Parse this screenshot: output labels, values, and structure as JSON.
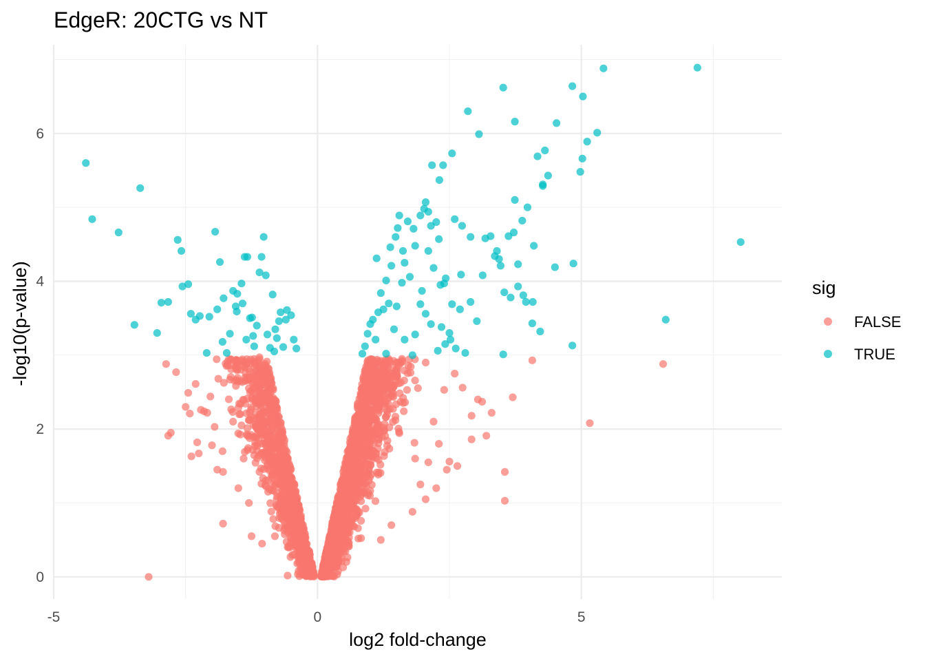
{
  "chart_data": {
    "type": "scatter",
    "title": "EdgeR: 20CTG vs NT",
    "xlabel": "log2 fold-change",
    "ylabel": "-log10(p-value)",
    "xlim": [
      -5,
      8.8
    ],
    "ylim": [
      -0.3,
      7.2
    ],
    "x_ticks": [
      -5,
      0,
      5
    ],
    "x_tick_labels": [
      "-5",
      "0",
      "5"
    ],
    "y_ticks": [
      0,
      2,
      4,
      6
    ],
    "y_tick_labels": [
      "0",
      "2",
      "4",
      "6"
    ],
    "grid": true,
    "legend": {
      "title": "sig",
      "position": "right",
      "entries": [
        {
          "label": "FALSE",
          "color": "#F8766D"
        },
        {
          "label": "TRUE",
          "color": "#00BFC4"
        }
      ]
    },
    "point_opacity": 0.7,
    "series": [
      {
        "name": "FALSE",
        "color": "#F8766D",
        "points": [
          [
            -2.87,
            2.88
          ],
          [
            -2.83,
            1.91
          ],
          [
            -2.78,
            1.95
          ],
          [
            -2.68,
            2.77
          ],
          [
            -2.45,
            2.49
          ],
          [
            -2.42,
            2.21
          ],
          [
            -2.39,
            1.63
          ],
          [
            -2.31,
            2.61
          ],
          [
            -2.28,
            1.82
          ],
          [
            -2.25,
            1.67
          ],
          [
            -2.21,
            2.26
          ],
          [
            -2.15,
            2.24
          ],
          [
            -2.09,
            2.22
          ],
          [
            -2.03,
            2.44
          ],
          [
            -2.0,
            1.78
          ],
          [
            -1.95,
            2.03
          ],
          [
            -1.9,
            1.45
          ],
          [
            -1.88,
            2.68
          ],
          [
            -1.79,
            1.42
          ],
          [
            -1.79,
            0.72
          ],
          [
            -1.7,
            2.86
          ],
          [
            -1.55,
            2.84
          ],
          [
            -1.4,
            2.85
          ],
          [
            -1.2,
            2.9
          ],
          [
            -1.1,
            2.97
          ],
          [
            -1.05,
            2.6
          ],
          [
            -2.5,
            2.3
          ],
          [
            -1.8,
            1.7
          ],
          [
            -1.6,
            2.1
          ],
          [
            -1.5,
            1.2
          ],
          [
            -1.4,
            1.6
          ],
          [
            -1.3,
            1.0
          ],
          [
            -1.25,
            0.55
          ],
          [
            -1.05,
            0.45
          ],
          [
            -3.2,
            0.0
          ],
          [
            2.6,
            2.75
          ],
          [
            2.75,
            2.56
          ],
          [
            2.92,
            2.18
          ],
          [
            2.92,
            1.86
          ],
          [
            3.04,
            2.4
          ],
          [
            3.12,
            2.37
          ],
          [
            3.2,
            1.91
          ],
          [
            3.3,
            2.22
          ],
          [
            3.55,
            1.42
          ],
          [
            3.55,
            1.03
          ],
          [
            3.7,
            2.43
          ],
          [
            4.07,
            2.93
          ],
          [
            5.16,
            2.08
          ],
          [
            6.55,
            2.88
          ],
          [
            2.4,
            2.53
          ],
          [
            2.5,
            1.56
          ],
          [
            2.3,
            1.8
          ],
          [
            2.2,
            2.1
          ],
          [
            2.1,
            1.55
          ],
          [
            1.95,
            1.25
          ],
          [
            1.8,
            0.88
          ],
          [
            2.05,
            2.9
          ],
          [
            1.6,
            2.95
          ],
          [
            1.4,
            0.7
          ],
          [
            1.2,
            0.5
          ],
          [
            2.25,
            1.2
          ],
          [
            2.45,
            1.45
          ],
          [
            2.65,
            1.5
          ],
          [
            2.05,
            1.05
          ],
          [
            1.85,
            1.6
          ]
        ],
        "bulk_points_shape": "V-shaped dense cloud between x = -1.6 and x = 1.9, y = 0 to 3"
      },
      {
        "name": "TRUE",
        "color": "#00BFC4",
        "points": [
          [
            -4.39,
            5.6
          ],
          [
            -4.27,
            4.84
          ],
          [
            -3.77,
            4.66
          ],
          [
            -3.36,
            5.26
          ],
          [
            -3.47,
            3.41
          ],
          [
            -3.04,
            3.3
          ],
          [
            -2.96,
            3.71
          ],
          [
            -2.83,
            3.72
          ],
          [
            -2.65,
            4.56
          ],
          [
            -2.58,
            4.41
          ],
          [
            -2.56,
            3.93
          ],
          [
            -2.45,
            3.96
          ],
          [
            -2.4,
            3.56
          ],
          [
            -2.31,
            3.48
          ],
          [
            -2.23,
            3.53
          ],
          [
            -2.1,
            3.03
          ],
          [
            -2.05,
            3.52
          ],
          [
            -1.94,
            4.67
          ],
          [
            -1.85,
            4.26
          ],
          [
            -1.78,
            3.77
          ],
          [
            -1.72,
            3.03
          ],
          [
            -1.66,
            3.29
          ],
          [
            -1.55,
            3.66
          ],
          [
            -1.53,
            3.59
          ],
          [
            -1.44,
            3.97
          ],
          [
            -1.38,
            4.33
          ],
          [
            -1.33,
            4.33
          ],
          [
            -1.28,
            3.5
          ],
          [
            -1.24,
            3.51
          ],
          [
            -1.22,
            3.26
          ],
          [
            -1.2,
            3.12
          ],
          [
            -1.15,
            3.4
          ],
          [
            -1.1,
            4.12
          ],
          [
            -1.06,
            4.33
          ],
          [
            -1.02,
            4.6
          ],
          [
            -0.98,
            4.08
          ],
          [
            -0.95,
            3.28
          ],
          [
            -0.9,
            3.1
          ],
          [
            -0.82,
            3.05
          ],
          [
            -0.77,
            3.23
          ],
          [
            -0.73,
            3.46
          ],
          [
            -0.65,
            3.11
          ],
          [
            -0.6,
            3.48
          ],
          [
            -0.58,
            3.61
          ],
          [
            -0.5,
            3.54
          ],
          [
            -0.45,
            3.21
          ],
          [
            -0.4,
            3.09
          ],
          [
            -1.8,
            3.18
          ],
          [
            -1.6,
            3.87
          ],
          [
            -1.52,
            3.83
          ],
          [
            -1.42,
            3.7
          ],
          [
            -1.35,
            3.21
          ],
          [
            -0.8,
            3.35
          ],
          [
            -0.7,
            3.58
          ],
          [
            -0.85,
            3.82
          ],
          [
            -1.9,
            3.62
          ],
          [
            7.2,
            6.89
          ],
          [
            5.42,
            6.88
          ],
          [
            3.52,
            6.62
          ],
          [
            4.83,
            6.64
          ],
          [
            5.03,
            6.5
          ],
          [
            2.85,
            6.3
          ],
          [
            3.74,
            6.16
          ],
          [
            4.53,
            6.14
          ],
          [
            5.3,
            6.01
          ],
          [
            3.06,
            5.99
          ],
          [
            5.11,
            5.89
          ],
          [
            2.55,
            5.73
          ],
          [
            4.31,
            5.77
          ],
          [
            4.17,
            5.69
          ],
          [
            5.02,
            5.66
          ],
          [
            2.17,
            5.57
          ],
          [
            2.38,
            5.57
          ],
          [
            4.98,
            5.48
          ],
          [
            4.37,
            5.43
          ],
          [
            4.27,
            5.31
          ],
          [
            4.27,
            5.29
          ],
          [
            2.31,
            5.37
          ],
          [
            8.02,
            4.53
          ],
          [
            6.6,
            3.48
          ],
          [
            3.74,
            5.1
          ],
          [
            3.98,
            5.0
          ],
          [
            3.88,
            4.82
          ],
          [
            3.62,
            4.61
          ],
          [
            3.72,
            4.66
          ],
          [
            3.28,
            4.61
          ],
          [
            3.36,
            4.34
          ],
          [
            3.44,
            4.3
          ],
          [
            3.18,
            4.58
          ],
          [
            2.74,
            4.75
          ],
          [
            2.6,
            4.84
          ],
          [
            2.9,
            4.6
          ],
          [
            3.8,
            4.23
          ],
          [
            3.47,
            4.21
          ],
          [
            3.4,
            4.41
          ],
          [
            4.1,
            4.48
          ],
          [
            4.5,
            4.19
          ],
          [
            4.85,
            4.24
          ],
          [
            3.13,
            4.08
          ],
          [
            3.8,
            3.93
          ],
          [
            3.9,
            3.81
          ],
          [
            3.95,
            3.72
          ],
          [
            4.08,
            3.72
          ],
          [
            4.22,
            3.32
          ],
          [
            3.52,
            3.01
          ],
          [
            3.54,
            3.85
          ],
          [
            3.66,
            3.78
          ],
          [
            4.83,
            3.13
          ],
          [
            4.07,
            3.43
          ],
          [
            3.02,
            3.46
          ],
          [
            2.7,
            3.62
          ],
          [
            2.9,
            3.72
          ],
          [
            2.55,
            3.69
          ],
          [
            2.43,
            4.04
          ],
          [
            2.72,
            4.09
          ],
          [
            2.62,
            3.09
          ],
          [
            2.8,
            3.03
          ],
          [
            2.33,
            3.95
          ],
          [
            2.2,
            4.18
          ],
          [
            2.02,
            4.98
          ],
          [
            2.1,
            4.94
          ],
          [
            2.05,
            5.07
          ],
          [
            1.95,
            4.89
          ],
          [
            1.82,
            4.71
          ],
          [
            1.71,
            4.81
          ],
          [
            1.55,
            4.89
          ],
          [
            1.52,
            4.72
          ],
          [
            1.48,
            4.6
          ],
          [
            1.85,
            4.48
          ],
          [
            1.62,
            4.41
          ],
          [
            1.38,
            4.46
          ],
          [
            1.4,
            4.21
          ],
          [
            1.12,
            4.31
          ],
          [
            1.3,
            4.01
          ],
          [
            1.6,
            3.98
          ],
          [
            1.75,
            4.06
          ],
          [
            2.1,
            4.41
          ],
          [
            2.3,
            4.57
          ],
          [
            2.25,
            4.8
          ],
          [
            2.15,
            4.75
          ],
          [
            2.4,
            3.97
          ],
          [
            2.05,
            3.56
          ],
          [
            1.95,
            3.69
          ],
          [
            1.5,
            3.66
          ],
          [
            1.35,
            3.7
          ],
          [
            1.25,
            3.62
          ],
          [
            1.2,
            3.84
          ],
          [
            1.05,
            3.48
          ],
          [
            0.95,
            3.29
          ],
          [
            0.9,
            3.12
          ],
          [
            0.85,
            3.02
          ],
          [
            1.1,
            3.21
          ],
          [
            1.45,
            3.35
          ],
          [
            1.65,
            3.21
          ],
          [
            1.85,
            3.28
          ],
          [
            2.15,
            3.42
          ],
          [
            2.35,
            3.38
          ],
          [
            2.5,
            3.3
          ],
          [
            2.28,
            3.06
          ],
          [
            1.8,
            3.0
          ],
          [
            1.3,
            3.02
          ],
          [
            1.0,
            3.42
          ],
          [
            1.15,
            3.58
          ],
          [
            1.65,
            4.25
          ],
          [
            1.98,
            3.87
          ],
          [
            2.52,
            3.21
          ],
          [
            2.42,
            3.15
          ]
        ]
      }
    ]
  }
}
